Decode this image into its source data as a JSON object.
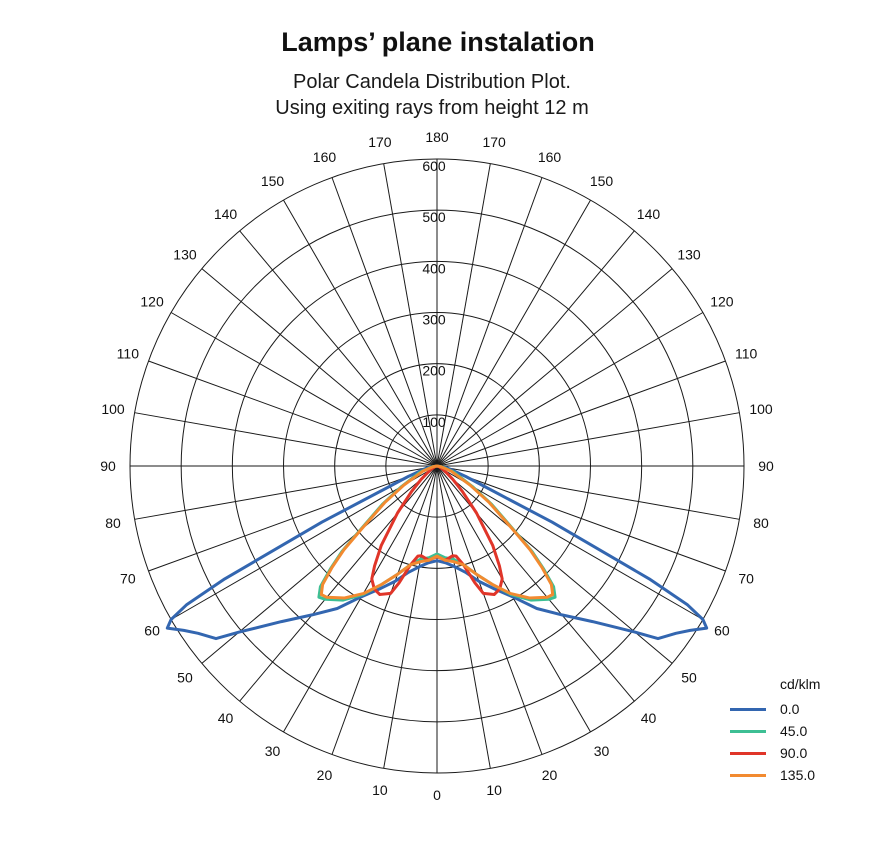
{
  "title": "Lamps’ plane instalation",
  "subtitle_line1": "Polar Candela Distribution Plot.",
  "subtitle_line2": "Using exiting rays from height 12 m",
  "chart_data": {
    "type": "polar-line",
    "unit": "cd/klm",
    "radial_ticks": [
      100,
      200,
      300,
      400,
      500,
      600
    ],
    "radial_max": 600,
    "angle_step": 10,
    "angle_labels_left": [
      "180",
      "170",
      "160",
      "150",
      "140",
      "130",
      "120",
      "110",
      "100",
      "90",
      "80",
      "70",
      "60",
      "50",
      "40",
      "30",
      "20",
      "10",
      "0"
    ],
    "angle_labels_right": [
      "170",
      "160",
      "150",
      "140",
      "130",
      "120",
      "110",
      "100",
      "90",
      "80",
      "70",
      "60",
      "50",
      "40",
      "30",
      "20",
      "10"
    ],
    "series": [
      {
        "name": "0.0",
        "color": "#3366b0",
        "angles": [
          0,
          5,
          10,
          15,
          20,
          25,
          30,
          35,
          40,
          45,
          50,
          52,
          55,
          57,
          59,
          60,
          61,
          62,
          64,
          66,
          70,
          80,
          90
        ],
        "values": [
          185,
          190,
          200,
          215,
          240,
          265,
          295,
          340,
          380,
          430,
          505,
          548,
          570,
          590,
          615,
          600,
          560,
          470,
          250,
          120,
          60,
          20,
          0
        ]
      },
      {
        "name": "45.0",
        "color": "#3dbf94",
        "angles": [
          0,
          5,
          10,
          15,
          20,
          25,
          30,
          35,
          40,
          42,
          44,
          46,
          48,
          50,
          55,
          60,
          70,
          80,
          90
        ],
        "values": [
          172,
          180,
          185,
          200,
          225,
          255,
          290,
          320,
          340,
          345,
          328,
          290,
          250,
          200,
          130,
          80,
          35,
          10,
          0
        ]
      },
      {
        "name": "90.0",
        "color": "#e03529",
        "angles": [
          0,
          5,
          10,
          12,
          15,
          18,
          20,
          24,
          27,
          30,
          32,
          35,
          40,
          45,
          50,
          60,
          70,
          80,
          90
        ],
        "values": [
          177,
          185,
          178,
          180,
          200,
          240,
          265,
          275,
          270,
          255,
          230,
          190,
          120,
          70,
          40,
          15,
          5,
          2,
          0
        ]
      },
      {
        "name": "135.0",
        "color": "#f28a30",
        "angles": [
          0,
          5,
          10,
          15,
          20,
          25,
          30,
          35,
          40,
          42,
          44,
          46,
          48,
          50,
          55,
          60,
          70,
          80,
          90
        ],
        "values": [
          176,
          185,
          190,
          200,
          225,
          255,
          288,
          315,
          335,
          338,
          322,
          285,
          245,
          195,
          125,
          75,
          30,
          8,
          0
        ]
      }
    ]
  }
}
